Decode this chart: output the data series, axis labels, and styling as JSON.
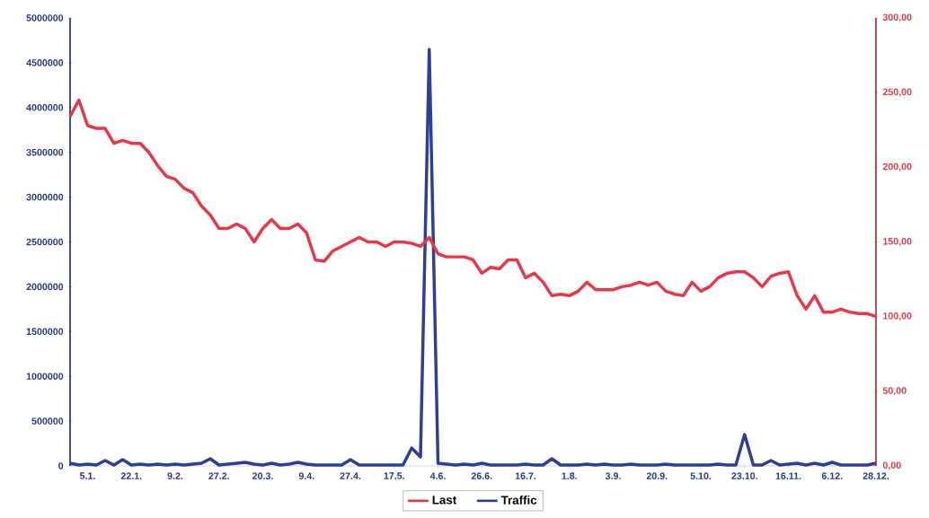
{
  "chart_data": {
    "type": "line",
    "categories": [
      null,
      null,
      "5.1.",
      null,
      null,
      null,
      null,
      "22.1.",
      null,
      null,
      null,
      null,
      "9.2.",
      null,
      null,
      null,
      null,
      "27.2.",
      null,
      null,
      null,
      null,
      "20.3.",
      null,
      null,
      null,
      null,
      "9.4.",
      null,
      null,
      null,
      null,
      "27.4.",
      null,
      null,
      null,
      null,
      "17.5.",
      null,
      null,
      null,
      null,
      "4.6.",
      null,
      null,
      null,
      null,
      "26.6.",
      null,
      null,
      null,
      null,
      "16.7.",
      null,
      null,
      null,
      null,
      "1.8.",
      null,
      null,
      null,
      null,
      "3.9.",
      null,
      null,
      null,
      null,
      "20.9.",
      null,
      null,
      null,
      null,
      "5.10.",
      null,
      null,
      null,
      null,
      "23.10.",
      null,
      null,
      null,
      null,
      "16.11.",
      null,
      null,
      null,
      null,
      "6.12.",
      null,
      null,
      null,
      null,
      "28.12."
    ],
    "series": [
      {
        "name": "Last",
        "color": "#e8374a",
        "axis": "y2",
        "values": [
          234,
          245,
          228,
          226,
          226,
          216,
          218,
          216,
          216,
          210,
          201,
          194,
          192,
          186,
          183,
          174,
          168,
          159,
          159,
          162,
          159,
          150,
          159,
          165,
          159,
          159,
          162,
          156,
          138,
          137,
          144,
          147,
          150,
          153,
          150,
          150,
          147,
          150,
          150,
          149,
          147,
          153,
          142,
          140,
          140,
          140,
          138,
          129,
          133,
          132,
          138,
          138,
          126,
          129,
          123,
          114,
          115,
          114,
          117,
          123,
          118,
          118,
          118,
          120,
          121,
          123,
          121,
          123,
          117,
          115,
          114,
          123,
          117,
          120,
          126,
          129,
          130,
          130,
          126,
          120,
          127,
          129,
          130,
          114,
          105,
          114,
          103,
          103,
          105,
          103,
          102,
          102,
          100
        ]
      },
      {
        "name": "Traffic",
        "color": "#2e3f96",
        "values": [
          30000,
          10000,
          20000,
          10000,
          60000,
          10000,
          70000,
          10000,
          20000,
          10000,
          20000,
          10000,
          20000,
          10000,
          20000,
          30000,
          80000,
          10000,
          20000,
          30000,
          40000,
          20000,
          10000,
          30000,
          10000,
          20000,
          40000,
          20000,
          10000,
          10000,
          10000,
          10000,
          70000,
          10000,
          10000,
          10000,
          10000,
          10000,
          10000,
          200000,
          100000,
          4650000,
          30000,
          20000,
          10000,
          20000,
          10000,
          30000,
          10000,
          10000,
          10000,
          10000,
          20000,
          10000,
          10000,
          80000,
          10000,
          10000,
          10000,
          20000,
          10000,
          20000,
          10000,
          10000,
          20000,
          10000,
          10000,
          10000,
          20000,
          10000,
          10000,
          10000,
          10000,
          10000,
          20000,
          10000,
          10000,
          350000,
          10000,
          10000,
          60000,
          10000,
          20000,
          30000,
          10000,
          30000,
          10000,
          40000,
          10000,
          10000,
          10000,
          10000,
          30000
        ]
      }
    ],
    "ylim": [
      0,
      5000000
    ],
    "yticks": [
      0,
      500000,
      1000000,
      1500000,
      2000000,
      2500000,
      3000000,
      3500000,
      4000000,
      4500000,
      5000000
    ],
    "y2lim": [
      0,
      300
    ],
    "y2ticks": [
      {
        "value": 0,
        "label": "0,00"
      },
      {
        "value": 50,
        "label": "50,00"
      },
      {
        "value": 100,
        "label": "100,00"
      },
      {
        "value": 150,
        "label": "150,00"
      },
      {
        "value": 200,
        "label": "200,00"
      },
      {
        "value": 250,
        "label": "250,00"
      },
      {
        "value": 300,
        "label": "300,00"
      }
    ],
    "legend": "bottom"
  }
}
